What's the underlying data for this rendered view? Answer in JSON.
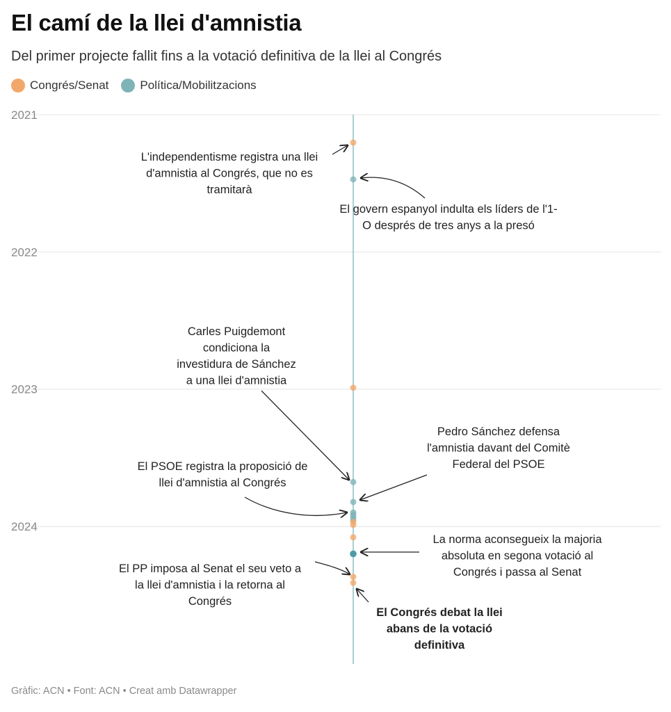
{
  "header": {
    "title": "El camí de la llei d'amnistia",
    "subtitle": "Del primer projecte fallit fins a la votació definitiva de la llei al Congrés"
  },
  "legend": [
    {
      "label": "Congrés/Senat",
      "color": "#f3a86b"
    },
    {
      "label": "Política/Mobilitzacions",
      "color": "#7fb3b8"
    }
  ],
  "footer": "Gràfic: ACN • Font: ACN • Creat amb Datawrapper",
  "chart_data": {
    "type": "scatter",
    "orientation": "vertical-timeline",
    "y_axis": {
      "ticks": [
        "2021",
        "2022",
        "2023",
        "2024"
      ],
      "range": [
        "2021-01-01",
        "2025-01-01"
      ],
      "direction": "down"
    },
    "grid": true,
    "series": [
      {
        "name": "Congrés/Senat",
        "color": "#f3a86b"
      },
      {
        "name": "Política/Mobilitzacions",
        "color": "#7fb3b8"
      }
    ],
    "points": [
      {
        "date": "2021-03-16",
        "category": "Congrés/Senat"
      },
      {
        "date": "2021-06-22",
        "category": "Política/Mobilitzacions"
      },
      {
        "date": "2022-12-28",
        "category": "Congrés/Senat"
      },
      {
        "date": "2023-09-05",
        "category": "Política/Mobilitzacions"
      },
      {
        "date": "2023-10-28",
        "category": "Política/Mobilitzacions"
      },
      {
        "date": "2023-11-25",
        "category": "Política/Mobilitzacions"
      },
      {
        "date": "2023-12-01",
        "category": "Política/Mobilitzacions"
      },
      {
        "date": "2023-12-08",
        "category": "Política/Mobilitzacions"
      },
      {
        "date": "2023-12-15",
        "category": "Política/Mobilitzacions"
      },
      {
        "date": "2023-12-20",
        "category": "Congrés/Senat"
      },
      {
        "date": "2023-12-28",
        "category": "Congrés/Senat"
      },
      {
        "date": "2024-01-30",
        "category": "Congrés/Senat"
      },
      {
        "date": "2024-03-14",
        "category": "Política/Mobilitzacions",
        "emphasis": true
      },
      {
        "date": "2024-05-14",
        "category": "Congrés/Senat"
      },
      {
        "date": "2024-05-30",
        "category": "Congrés/Senat"
      }
    ],
    "annotations": [
      {
        "lines": [
          "L'independentisme registra una llei",
          "d'amnistia al Congrés, que no es",
          "tramitarà"
        ],
        "bold": false
      },
      {
        "lines": [
          "El govern espanyol indulta els líders de l'1-",
          "O després de tres anys a la presó"
        ],
        "bold": false
      },
      {
        "lines": [
          "Carles Puigdemont",
          "condiciona la",
          "investidura de Sánchez",
          "a una llei d'amnistia"
        ],
        "bold": false
      },
      {
        "lines": [
          "Pedro Sánchez defensa",
          "l'amnistia davant del Comitè",
          "Federal del PSOE"
        ],
        "bold": false
      },
      {
        "lines": [
          "El PSOE registra la proposició de",
          "llei d'amnistia al Congrés"
        ],
        "bold": false
      },
      {
        "lines": [
          "La norma aconsegueix la majoria",
          "absoluta en segona votació al",
          "Congrés i passa al Senat"
        ],
        "bold": false
      },
      {
        "lines": [
          "El PP imposa al Senat el seu veto a",
          "la llei d'amnistia i la retorna al",
          "Congrés"
        ],
        "bold": false
      },
      {
        "lines": [
          "El Congrés debat la llei",
          "abans de la votació",
          "definitiva"
        ],
        "bold": true
      }
    ]
  }
}
